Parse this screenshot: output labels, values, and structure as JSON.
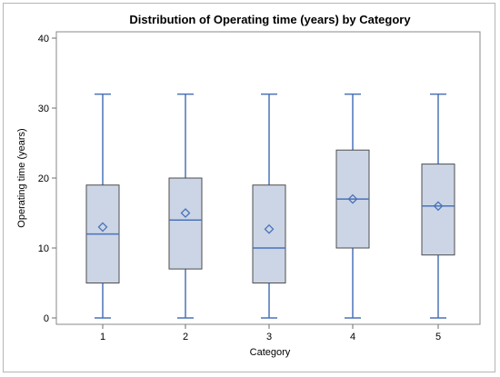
{
  "chart_data": {
    "type": "box",
    "title": "Distribution of Operating time (years) by Category",
    "xlabel": "Category",
    "ylabel": "Operating time (years)",
    "categories": [
      "1",
      "2",
      "3",
      "4",
      "5"
    ],
    "ylim": [
      0,
      40
    ],
    "yticks": [
      "0",
      "10",
      "20",
      "30",
      "40"
    ],
    "grid": false,
    "boxes": [
      {
        "category": "1",
        "min": 0,
        "q1": 5,
        "median": 12,
        "q3": 19,
        "max": 32,
        "mean": 13
      },
      {
        "category": "2",
        "min": 0,
        "q1": 7,
        "median": 14,
        "q3": 20,
        "max": 32,
        "mean": 15
      },
      {
        "category": "3",
        "min": 0,
        "q1": 5,
        "median": 10,
        "q3": 19,
        "max": 32,
        "mean": 12.7
      },
      {
        "category": "4",
        "min": 0,
        "q1": 10,
        "median": 17,
        "q3": 24,
        "max": 32,
        "mean": 17
      },
      {
        "category": "5",
        "min": 0,
        "q1": 9,
        "median": 16,
        "q3": 22,
        "max": 32,
        "mean": 16
      }
    ],
    "colors": {
      "box_fill": "#cbd5e6",
      "box_outline": "#4d4d4d",
      "line": "#4a72b8",
      "axis": "#6e6e6e"
    }
  }
}
